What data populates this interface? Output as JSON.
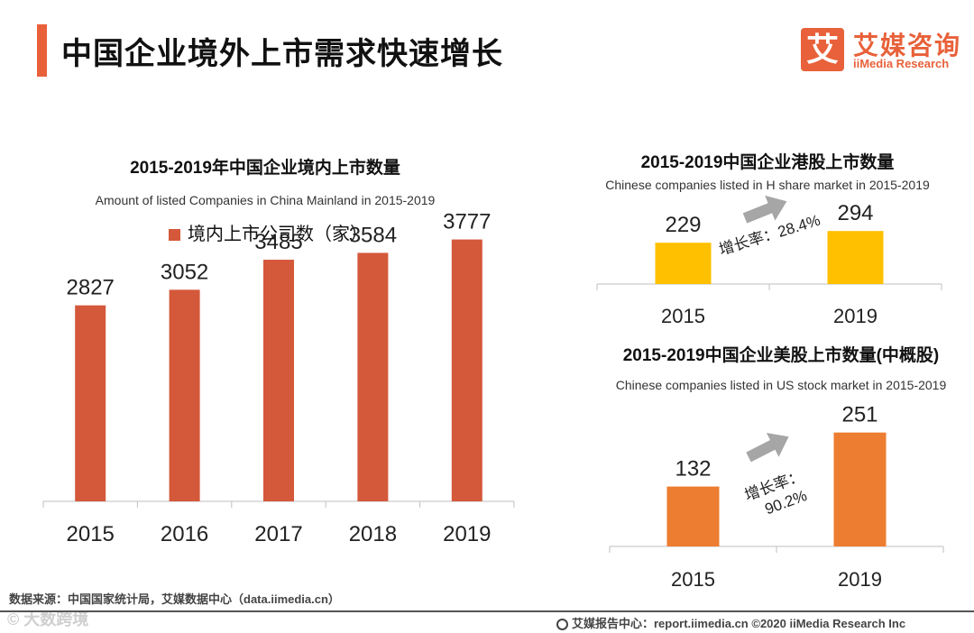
{
  "header": {
    "title": "中国企业境外上市需求快速增长",
    "logo_mark": "艾",
    "logo_cn": "艾媒咨询",
    "logo_en": "iiMedia Research"
  },
  "colors": {
    "accent": "#E8613A",
    "domestic_bar": "#D4583A",
    "hk_bar": "#FFC000",
    "us_bar": "#ED7D31",
    "arrow": "#A6A6A6"
  },
  "chart_data": [
    {
      "type": "bar",
      "title": "2015-2019年中国企业境内上市数量",
      "subtitle": "Amount of listed Companies in China Mainland in 2015-2019",
      "legend": "境内上市公司数（家）",
      "categories": [
        "2015",
        "2016",
        "2017",
        "2018",
        "2019"
      ],
      "values": [
        2827,
        3052,
        3485,
        3584,
        3777
      ],
      "ylim": [
        0,
        4500
      ]
    },
    {
      "type": "bar",
      "title": "2015-2019中国企业港股上市数量",
      "subtitle": "Chinese companies listed in H share market in 2015-2019",
      "categories": [
        "2015",
        "2019"
      ],
      "values": [
        229,
        294
      ],
      "ylim": [
        0,
        600
      ],
      "annotation": "增长率：28.4%"
    },
    {
      "type": "bar",
      "title": "2015-2019中国企业美股上市数量(中概股)",
      "subtitle": "Chinese companies listed in US stock market in 2015-2019",
      "categories": [
        "2015",
        "2019"
      ],
      "values": [
        132,
        251
      ],
      "ylim": [
        0,
        300
      ],
      "annotation_line1": "增长率：",
      "annotation_line2": "90.2%"
    }
  ],
  "footer": {
    "source": "数据来源：中国国家统计局，艾媒数据中心（data.iimedia.cn）",
    "watermark": "© 大数跨境",
    "right": "艾媒报告中心：report.iimedia.cn  ©2020  iiMedia Research  Inc"
  }
}
